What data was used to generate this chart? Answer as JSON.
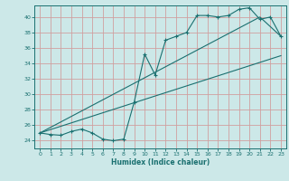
{
  "xlabel": "Humidex (Indice chaleur)",
  "bg_color": "#cce8e8",
  "line_color": "#1a7070",
  "grid_color": "#d0a0a0",
  "xlim": [
    -0.5,
    23.5
  ],
  "ylim": [
    23.0,
    41.5
  ],
  "yticks": [
    24,
    26,
    28,
    30,
    32,
    34,
    36,
    38,
    40
  ],
  "xticks": [
    0,
    1,
    2,
    3,
    4,
    5,
    6,
    7,
    8,
    9,
    10,
    11,
    12,
    13,
    14,
    15,
    16,
    17,
    18,
    19,
    20,
    21,
    22,
    23
  ],
  "line1_x": [
    0,
    1,
    2,
    3,
    4,
    5,
    6,
    7,
    8,
    9,
    10,
    11,
    12,
    13,
    14,
    15,
    16,
    17,
    18,
    19,
    20,
    21,
    22,
    23
  ],
  "line1_y": [
    25.0,
    24.8,
    24.7,
    25.2,
    25.5,
    25.0,
    24.2,
    24.0,
    24.2,
    29.0,
    35.2,
    32.5,
    37.0,
    37.5,
    38.0,
    40.2,
    40.2,
    40.0,
    40.2,
    41.0,
    41.2,
    39.7,
    40.0,
    37.5
  ],
  "line2_x": [
    0,
    23
  ],
  "line2_y": [
    25.0,
    35.0
  ],
  "line3_x": [
    0,
    21,
    23
  ],
  "line3_y": [
    25.0,
    40.0,
    37.5
  ]
}
